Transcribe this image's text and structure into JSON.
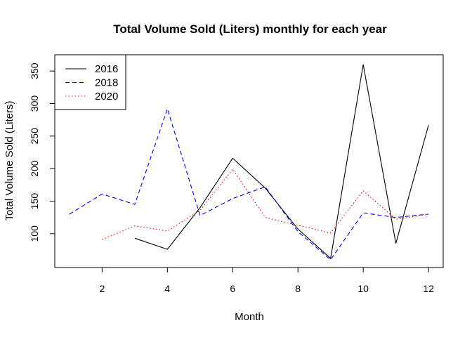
{
  "chart_data": {
    "type": "line",
    "title": "Total Volume Sold (Liters) monthly for each year",
    "xlabel": "Month",
    "ylabel": "Total Volume Sold (Liters)",
    "xlim": [
      0.55,
      12.45
    ],
    "ylim": [
      48,
      375
    ],
    "xticks": [
      2,
      4,
      6,
      8,
      10,
      12
    ],
    "yticks": [
      100,
      150,
      200,
      250,
      300,
      350
    ],
    "grid": false,
    "legend_position": "top-left",
    "series": [
      {
        "name": "2016",
        "color": "#000000",
        "dash": "solid",
        "x": [
          3,
          4,
          5,
          6,
          7,
          8,
          9,
          10,
          11,
          12
        ],
        "values": [
          93,
          76,
          140,
          216,
          170,
          107,
          62,
          360,
          85,
          267
        ]
      },
      {
        "name": "2018",
        "color": "#0000ff",
        "dash": "dashed",
        "x": [
          1,
          2,
          3,
          4,
          5,
          6,
          7,
          8,
          9,
          10,
          11,
          12
        ],
        "values": [
          130,
          161,
          145,
          292,
          128,
          154,
          172,
          103,
          60,
          132,
          125,
          130
        ]
      },
      {
        "name": "2020",
        "color": "#ff0000",
        "dash": "dotted",
        "x": [
          2,
          3,
          4,
          5,
          6,
          7,
          8,
          9,
          10,
          11,
          12
        ],
        "values": [
          91,
          112,
          104,
          136,
          199,
          125,
          113,
          101,
          166,
          122,
          130
        ]
      }
    ]
  }
}
